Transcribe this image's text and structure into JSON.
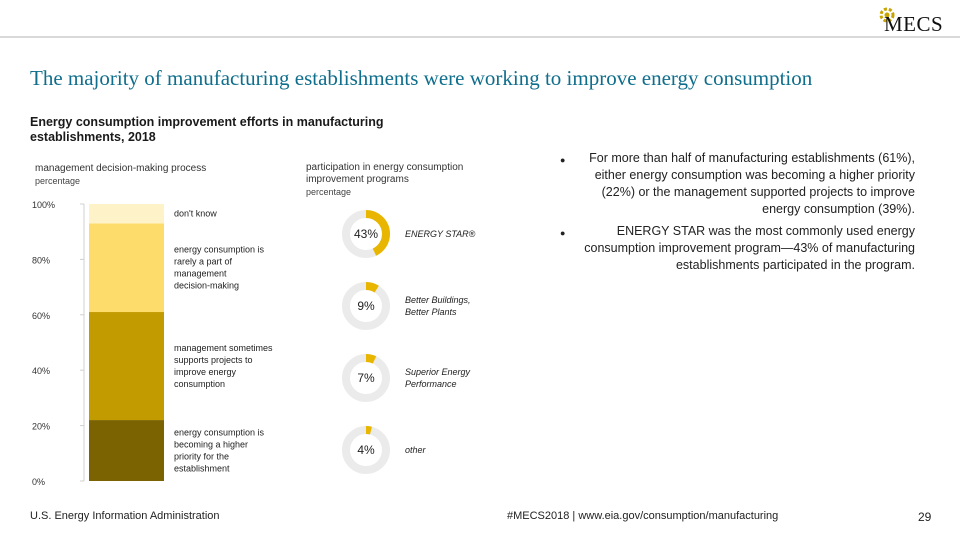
{
  "header": {
    "logo_text": "MECS",
    "title": "The majority of manufacturing establishments were working to improve energy consumption"
  },
  "chart_data": [
    {
      "type": "bar",
      "title": "Energy consumption improvement efforts in manufacturing establishments, 2018",
      "subtitle": "management decision-making process",
      "ylabel": "percentage",
      "ylim": [
        0,
        100
      ],
      "yticks": [
        0,
        20,
        40,
        60,
        80,
        100
      ],
      "ytick_labels": [
        "0%",
        "20%",
        "40%",
        "60%",
        "80%",
        "100%"
      ],
      "stacked": true,
      "series": [
        {
          "name": "energy consumption is becoming a higher priority for the establishment",
          "value": 22,
          "color": "#7a6300"
        },
        {
          "name": "management sometimes supports projects to improve energy consumption",
          "value": 39,
          "color": "#c29b00"
        },
        {
          "name": "energy consumption is rarely a part of management decision-making",
          "value": 32,
          "color": "#fedc6b"
        },
        {
          "name": "don't know",
          "value": 7,
          "color": "#fdf2c8"
        }
      ]
    },
    {
      "type": "pie",
      "subtitle": "participation in energy consumption improvement programs",
      "ylabel": "percentage",
      "items": [
        {
          "label": "ENERGY STAR®",
          "value": 43,
          "value_label": "43%"
        },
        {
          "label": "Better Buildings, Better Plants",
          "value": 9,
          "value_label": "9%"
        },
        {
          "label": "Superior Energy Performance",
          "value": 7,
          "value_label": "7%"
        },
        {
          "label": "other",
          "value": 4,
          "value_label": "4%"
        }
      ],
      "colors": {
        "filled": "#e8b600",
        "remainder": "#ebebeb"
      }
    }
  ],
  "bullets": [
    "For more than half of manufacturing establishments (61%), either energy consumption was becoming a higher priority (22%) or the management supported projects to improve energy consumption (39%).",
    "ENERGY STAR was the most commonly used energy consumption improvement program—43% of manufacturing establishments participated in the program."
  ],
  "footer": {
    "source": "U.S. Energy Information Administration",
    "link": "#MECS2018 | www.eia.gov/consumption/manufacturing",
    "page_number": "29"
  }
}
